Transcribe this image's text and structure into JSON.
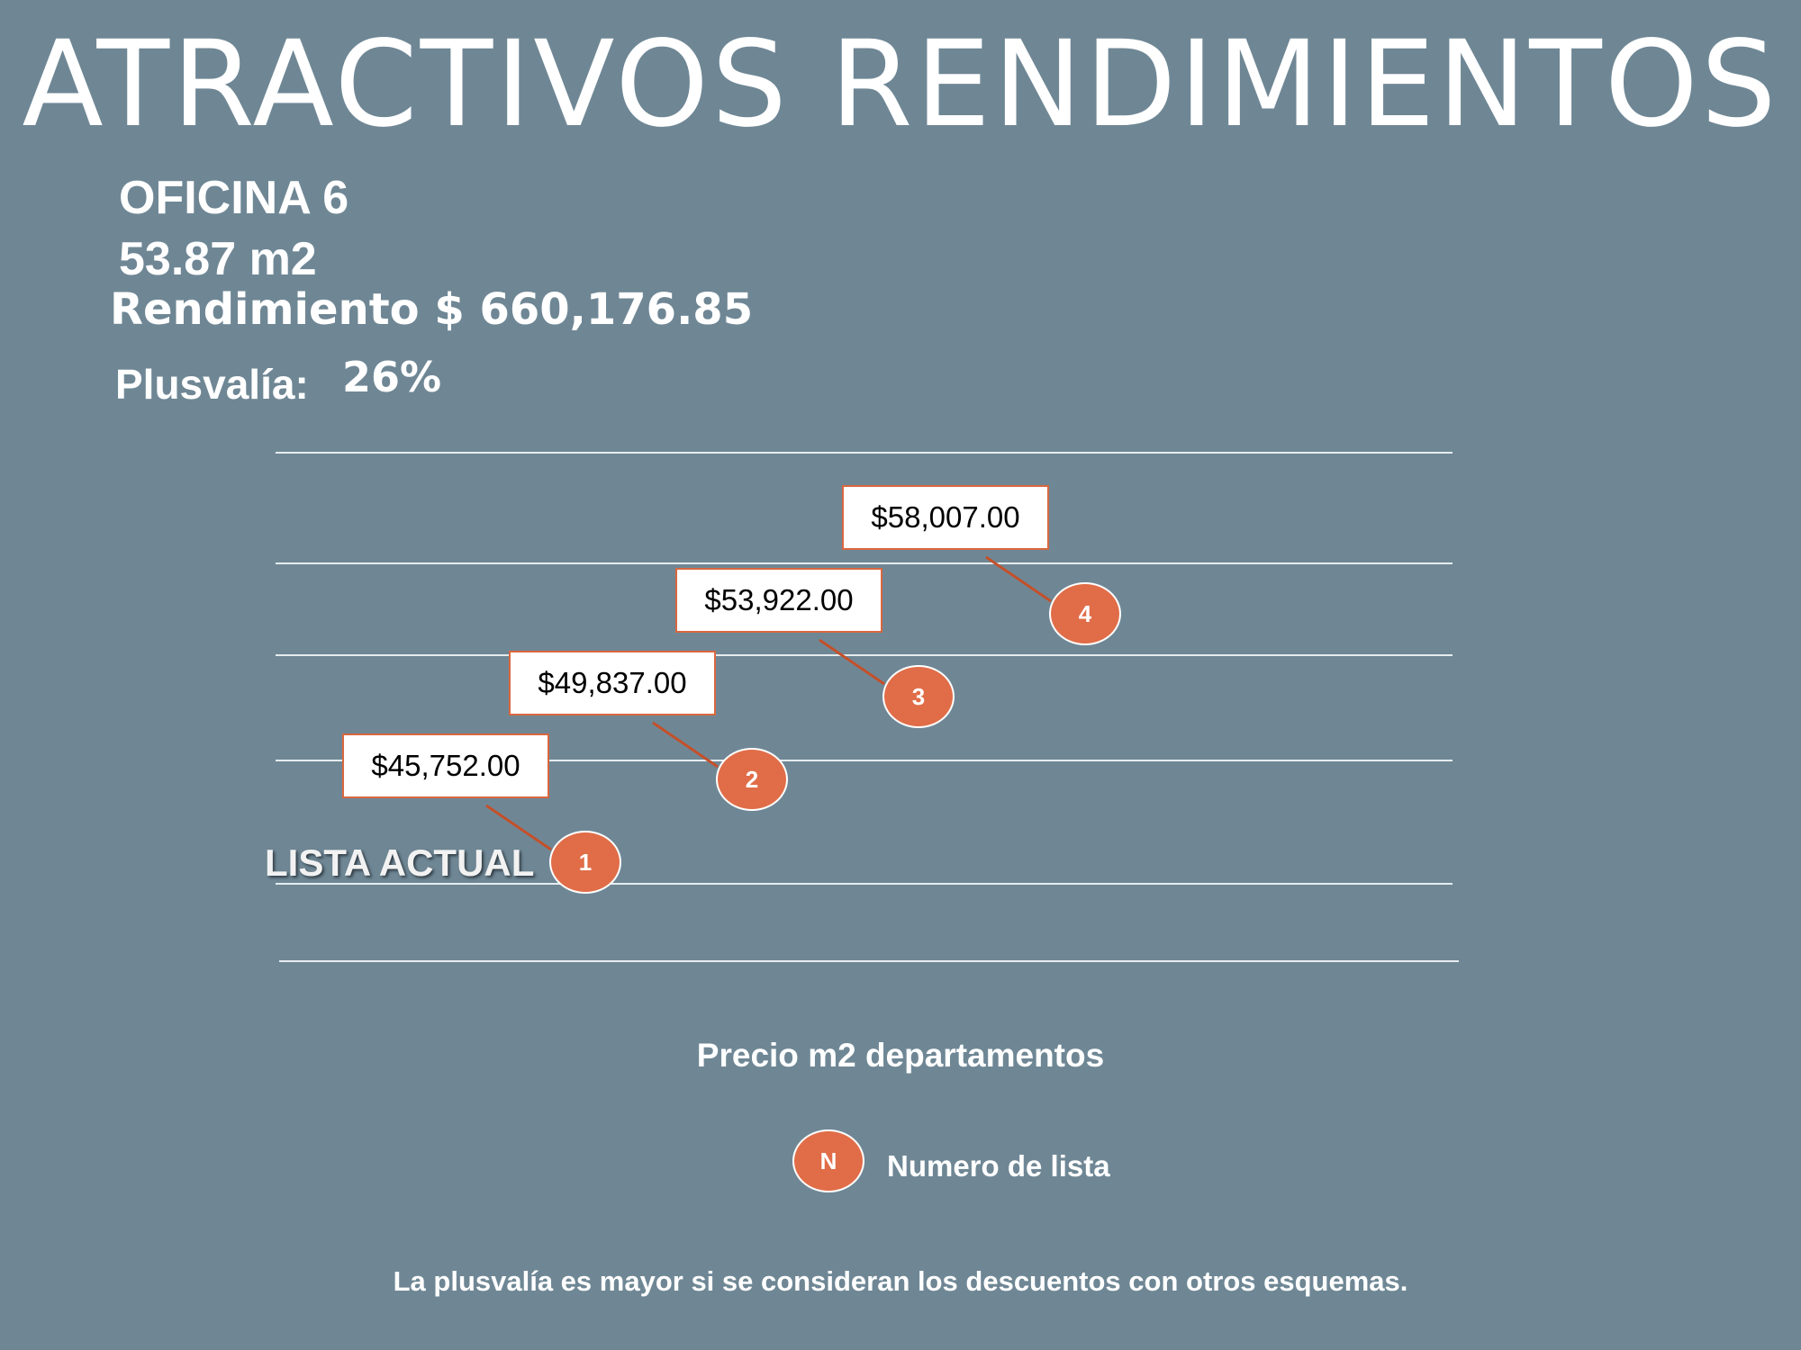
{
  "header": {
    "title": "ATRACTIVOS RENDIMIENTOS",
    "office": "OFICINA 6",
    "area": "53.87 m2",
    "yield_text": "Rendimiento $ 660,176.85",
    "plusvalia_label": "Plusvalía:",
    "plusvalia_value": "26%"
  },
  "chart_data": {
    "type": "line",
    "x": [
      1,
      2,
      3,
      4
    ],
    "values": [
      45752,
      49837,
      53922,
      58007
    ],
    "value_labels": [
      "$45,752.00",
      "$49,837.00",
      "$53,922.00",
      "$58,007.00"
    ],
    "marker_labels": [
      "1",
      "2",
      "3",
      "4"
    ],
    "current_label": "LISTA ACTUAL",
    "xlabel": "Precio m2 departamentos",
    "grid": true,
    "legend": {
      "marker": "N",
      "label": "Numero de lista",
      "placement": "bottom-center"
    },
    "colors": {
      "marker": "#e06d48",
      "leader": "#c4502a",
      "background": "#6f8795"
    }
  },
  "footnote": "La plusvalía es mayor si se consideran los descuentos con otros esquemas."
}
